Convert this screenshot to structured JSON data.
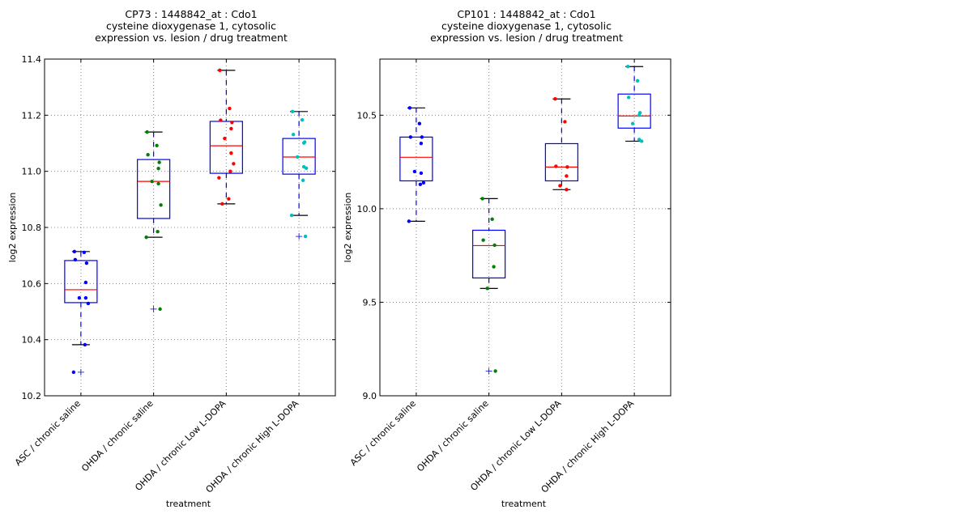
{
  "chart_data": [
    {
      "type": "box",
      "title": [
        "CP73 : 1448842_at : Cdo1",
        "cysteine dioxygenase 1, cytosolic",
        "expression vs. lesion / drug treatment"
      ],
      "xlabel": "treatment",
      "ylabel": "log2 expression",
      "ylim": [
        10.2,
        11.4
      ],
      "yticks": [
        10.2,
        10.4,
        10.6,
        10.8,
        11.0,
        11.2,
        11.4
      ],
      "ytick_labels": [
        "10.2",
        "10.4",
        "10.6",
        "10.8",
        "11.0",
        "11.2",
        "11.4"
      ],
      "grid": true,
      "categories": [
        "ASC / chronic saline",
        "OHDA / chronic saline",
        "OHDA / chronic Low L-DOPA",
        "OHDA / chronic High L-DOPA"
      ],
      "point_colors": [
        "#0000ff",
        "#008000",
        "#ff0000",
        "#00bfbf"
      ],
      "boxes": [
        {
          "q1": 10.532,
          "median": 10.578,
          "q3": 10.682,
          "whisker_low": 10.382,
          "whisker_high": 10.714,
          "outliers": [
            10.284
          ]
        },
        {
          "q1": 10.832,
          "median": 10.964,
          "q3": 11.042,
          "whisker_low": 10.765,
          "whisker_high": 11.14,
          "outliers": [
            10.509
          ]
        },
        {
          "q1": 10.993,
          "median": 11.091,
          "q3": 11.178,
          "whisker_low": 10.884,
          "whisker_high": 11.36,
          "outliers": []
        },
        {
          "q1": 10.99,
          "median": 11.051,
          "q3": 11.117,
          "whisker_low": 10.843,
          "whisker_high": 11.213,
          "outliers": [
            10.768
          ]
        }
      ],
      "points": [
        [
          10.714,
          10.711,
          10.685,
          10.673,
          10.604,
          10.549,
          10.549,
          10.529,
          10.382,
          10.284
        ],
        [
          11.14,
          11.092,
          11.059,
          11.032,
          11.01,
          10.964,
          10.956,
          10.88,
          10.785,
          10.765,
          10.509
        ],
        [
          11.36,
          11.224,
          11.182,
          11.174,
          11.152,
          11.117,
          11.065,
          11.027,
          11.0,
          10.977,
          10.902,
          10.884
        ],
        [
          11.213,
          11.183,
          11.131,
          11.104,
          11.101,
          11.051,
          11.016,
          11.011,
          10.968,
          10.843,
          10.768
        ]
      ]
    },
    {
      "type": "box",
      "title": [
        "CP101 : 1448842_at : Cdo1",
        "cysteine dioxygenase 1, cytosolic",
        "expression vs. lesion / drug treatment"
      ],
      "xlabel": "treatment",
      "ylabel": "log2 expression",
      "ylim": [
        9.0,
        10.8
      ],
      "yticks": [
        9.0,
        9.5,
        10.0,
        10.5
      ],
      "ytick_labels": [
        "9.0",
        "9.5",
        "10.0",
        "10.5"
      ],
      "grid": true,
      "categories": [
        "ASC / chronic saline",
        "OHDA / chronic saline",
        "OHDA / chronic Low L-DOPA",
        "OHDA / chronic High L-DOPA"
      ],
      "point_colors": [
        "#0000ff",
        "#008000",
        "#ff0000",
        "#00bfbf"
      ],
      "boxes": [
        {
          "q1": 10.149,
          "median": 10.275,
          "q3": 10.383,
          "whisker_low": 9.933,
          "whisker_high": 10.539,
          "outliers": []
        },
        {
          "q1": 9.63,
          "median": 9.803,
          "q3": 9.885,
          "whisker_low": 9.574,
          "whisker_high": 10.054,
          "outliers": [
            9.132
          ]
        },
        {
          "q1": 10.149,
          "median": 10.223,
          "q3": 10.348,
          "whisker_low": 10.102,
          "whisker_high": 10.587,
          "outliers": []
        },
        {
          "q1": 10.431,
          "median": 10.496,
          "q3": 10.613,
          "whisker_low": 10.361,
          "whisker_high": 10.76,
          "outliers": []
        }
      ],
      "points": [
        [
          10.539,
          10.455,
          10.383,
          10.383,
          10.349,
          10.199,
          10.19,
          10.139,
          10.13,
          9.933
        ],
        [
          10.054,
          9.944,
          9.832,
          9.805,
          9.69,
          9.574,
          9.132
        ],
        [
          10.587,
          10.465,
          10.227,
          10.223,
          10.175,
          10.123,
          10.102
        ],
        [
          10.76,
          10.684,
          10.595,
          10.513,
          10.5,
          10.455,
          10.37,
          10.361
        ]
      ]
    }
  ]
}
